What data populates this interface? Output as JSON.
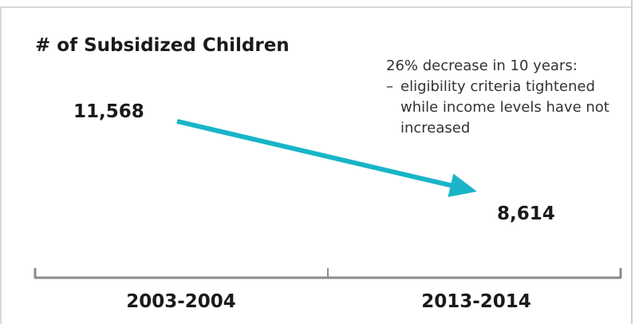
{
  "chart_data": {
    "type": "line",
    "title": "# of Subsidized Children",
    "categories": [
      "2003-2004",
      "2013-2014"
    ],
    "series": [
      {
        "values": [
          11568,
          8614
        ]
      }
    ],
    "value_labels": [
      "11,568",
      "8,614"
    ],
    "annotation": {
      "heading": "26% decrease in 10 years:",
      "bullet": "eligibility criteria tightened while income levels have not increased"
    },
    "grid": false,
    "line_color": "#19b4c8",
    "axis_color": "#8a8a8a"
  }
}
